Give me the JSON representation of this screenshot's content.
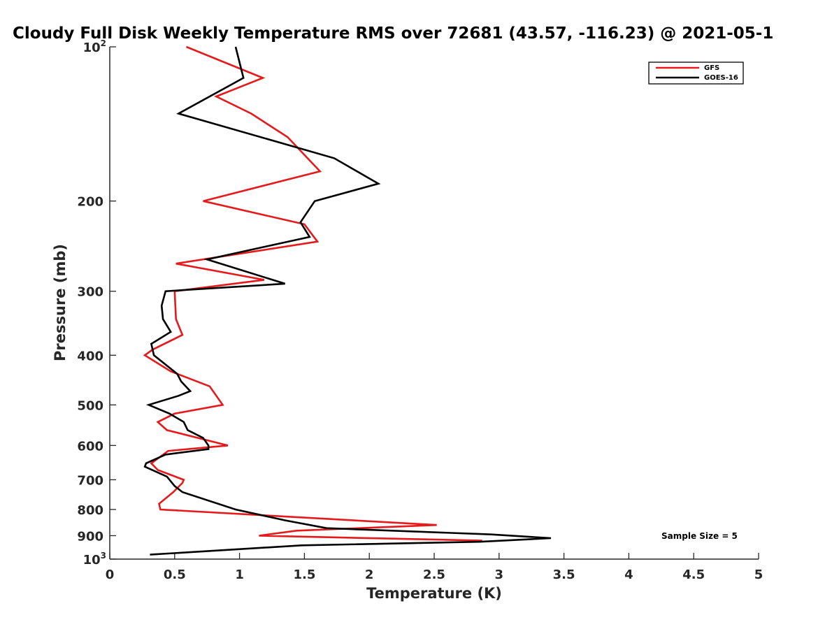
{
  "chart_data": {
    "type": "line",
    "title": "Cloudy Full Disk Weekly Temperature RMS over 72681 (43.57, -116.23) @ 2021-05-1",
    "xlabel": "Temperature (K)",
    "ylabel": "Pressure (mb)",
    "xlim": [
      0,
      5
    ],
    "ylim": [
      1000,
      100
    ],
    "yscale": "log",
    "y_reversed": true,
    "grid": false,
    "legend_position": "top-right",
    "x_ticks": [
      0,
      0.5,
      1,
      1.5,
      2,
      2.5,
      3,
      3.5,
      4,
      4.5,
      5
    ],
    "x_tick_labels": [
      "0",
      "0.5",
      "1",
      "1.5",
      "2",
      "2.5",
      "3",
      "3.5",
      "4",
      "4.5",
      "5"
    ],
    "y_ticks": [
      {
        "value": 100,
        "label": "10",
        "sup": "2"
      },
      {
        "value": 200,
        "label": "200",
        "sup": ""
      },
      {
        "value": 300,
        "label": "300",
        "sup": ""
      },
      {
        "value": 400,
        "label": "400",
        "sup": ""
      },
      {
        "value": 500,
        "label": "500",
        "sup": ""
      },
      {
        "value": 600,
        "label": "600",
        "sup": ""
      },
      {
        "value": 700,
        "label": "700",
        "sup": ""
      },
      {
        "value": 800,
        "label": "800",
        "sup": ""
      },
      {
        "value": 900,
        "label": "900",
        "sup": ""
      },
      {
        "value": 1000,
        "label": "10",
        "sup": "3"
      }
    ],
    "annotation": "Sample Size = 5",
    "series": [
      {
        "name": "GFS",
        "color": "#e41a1c",
        "points": [
          [
            0.59,
            100
          ],
          [
            1.18,
            115
          ],
          [
            0.82,
            125
          ],
          [
            1.09,
            135
          ],
          [
            1.37,
            150
          ],
          [
            1.62,
            175
          ],
          [
            0.72,
            200
          ],
          [
            1.5,
            222
          ],
          [
            1.6,
            240
          ],
          [
            0.51,
            265
          ],
          [
            1.19,
            285
          ],
          [
            0.5,
            300
          ],
          [
            0.51,
            340
          ],
          [
            0.56,
            365
          ],
          [
            0.33,
            390
          ],
          [
            0.27,
            400
          ],
          [
            0.47,
            430
          ],
          [
            0.77,
            460
          ],
          [
            0.87,
            500
          ],
          [
            0.5,
            520
          ],
          [
            0.37,
            540
          ],
          [
            0.44,
            560
          ],
          [
            0.91,
            600
          ],
          [
            0.45,
            615
          ],
          [
            0.32,
            650
          ],
          [
            0.37,
            670
          ],
          [
            0.57,
            700
          ],
          [
            0.56,
            710
          ],
          [
            0.49,
            740
          ],
          [
            0.38,
            780
          ],
          [
            0.39,
            800
          ],
          [
            2.52,
            858
          ],
          [
            1.44,
            880
          ],
          [
            1.15,
            900
          ],
          [
            2.87,
            920
          ]
        ]
      },
      {
        "name": "GOES-16",
        "color": "#000000",
        "points": [
          [
            0.97,
            100
          ],
          [
            1.03,
            115
          ],
          [
            0.53,
            135
          ],
          [
            1.73,
            165
          ],
          [
            2.07,
            185
          ],
          [
            1.58,
            200
          ],
          [
            1.47,
            220
          ],
          [
            1.54,
            235
          ],
          [
            0.75,
            260
          ],
          [
            1.35,
            290
          ],
          [
            0.43,
            300
          ],
          [
            0.4,
            320
          ],
          [
            0.41,
            340
          ],
          [
            0.47,
            360
          ],
          [
            0.32,
            380
          ],
          [
            0.34,
            400
          ],
          [
            0.52,
            435
          ],
          [
            0.55,
            450
          ],
          [
            0.62,
            470
          ],
          [
            0.53,
            480
          ],
          [
            0.3,
            500
          ],
          [
            0.46,
            520
          ],
          [
            0.57,
            540
          ],
          [
            0.6,
            560
          ],
          [
            0.72,
            580
          ],
          [
            0.76,
            600
          ],
          [
            0.76,
            610
          ],
          [
            0.43,
            625
          ],
          [
            0.28,
            650
          ],
          [
            0.27,
            660
          ],
          [
            0.44,
            690
          ],
          [
            0.5,
            720
          ],
          [
            0.56,
            740
          ],
          [
            0.97,
            800
          ],
          [
            1.35,
            840
          ],
          [
            1.67,
            870
          ],
          [
            2.94,
            895
          ],
          [
            3.4,
            910
          ],
          [
            2.85,
            925
          ],
          [
            1.48,
            940
          ],
          [
            0.31,
            980
          ]
        ]
      }
    ]
  }
}
